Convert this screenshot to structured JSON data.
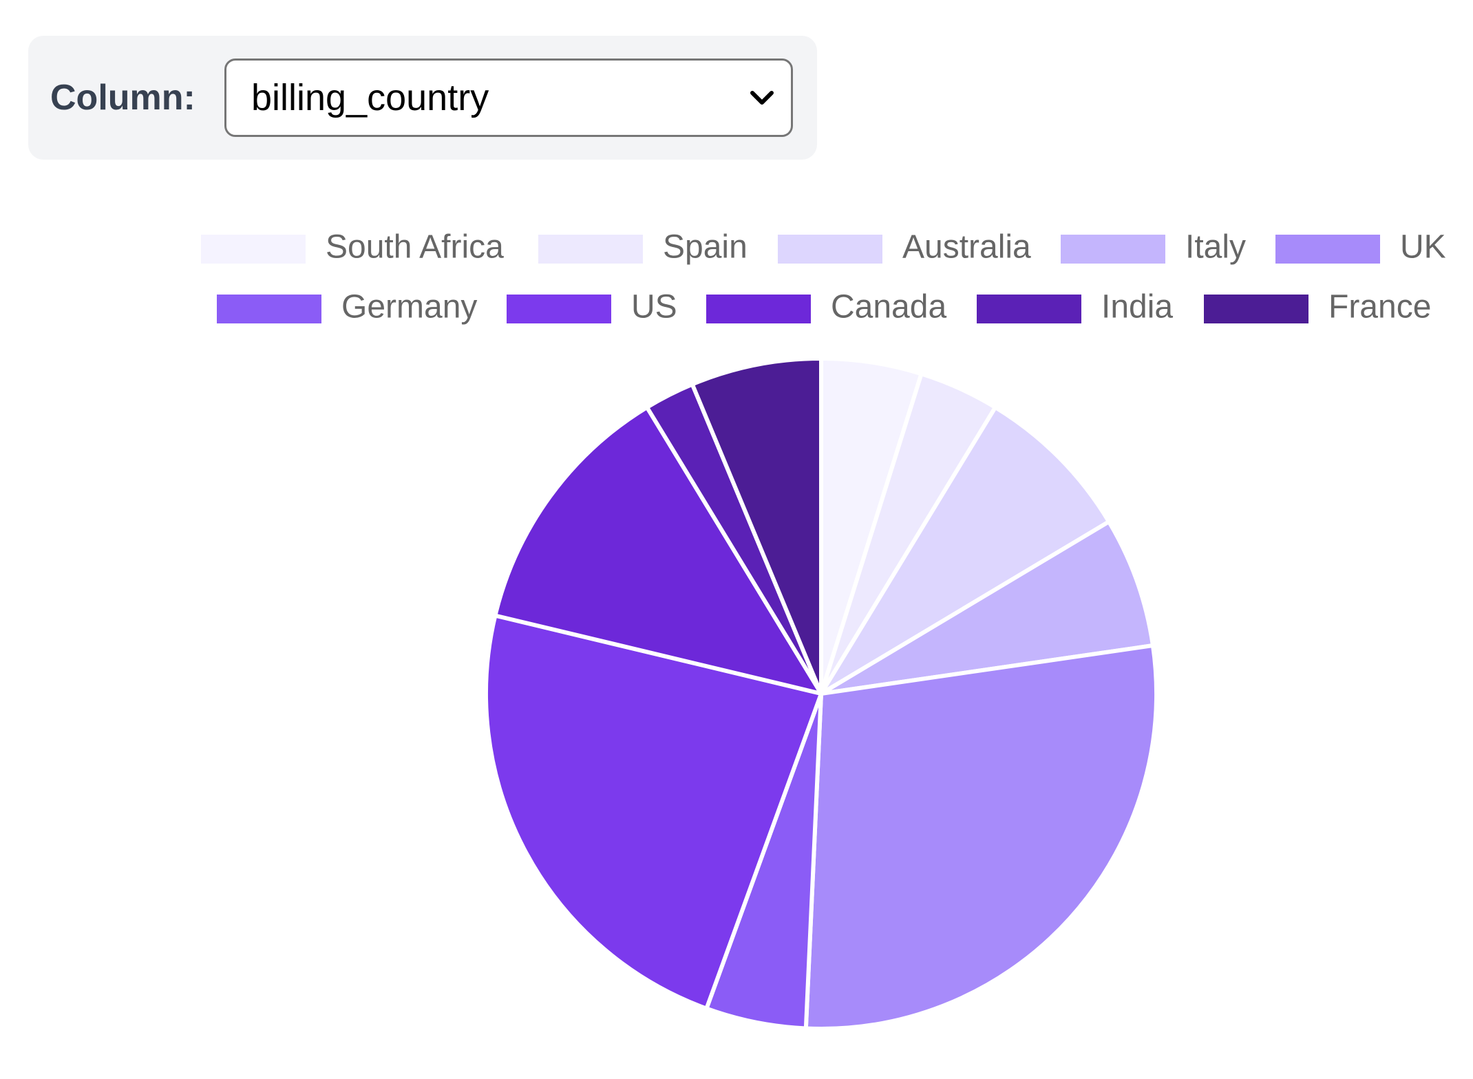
{
  "controls": {
    "column_label": "Column:",
    "column_value": "billing_country",
    "chevron_icon": "chevron-down-icon"
  },
  "chart_data": {
    "type": "pie",
    "legend_position": "top",
    "categories": [
      "South Africa",
      "Spain",
      "Australia",
      "Italy",
      "UK",
      "Germany",
      "US",
      "Canada",
      "India",
      "France"
    ],
    "values": [
      5,
      4,
      8,
      6.5,
      29,
      5,
      24,
      13,
      2.5,
      6.5
    ],
    "colors": [
      "#f5f3ff",
      "#ede9fe",
      "#ddd6fe",
      "#c4b5fd",
      "#a78bfa",
      "#8b5cf6",
      "#7c3aed",
      "#6d28d9",
      "#5b21b6",
      "#4c1d95"
    ],
    "slice_border_color": "#ffffff"
  }
}
